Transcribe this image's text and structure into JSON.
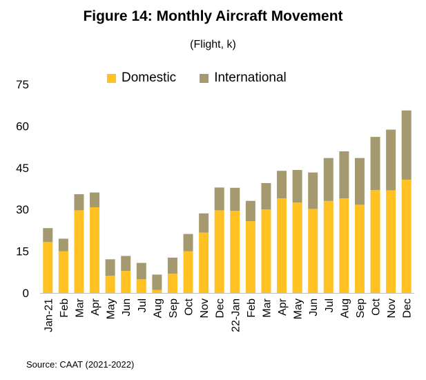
{
  "title": "Figure 14: Monthly Aircraft Movement",
  "subtitle": "(Flight, k)",
  "source": "Source: CAAT (2021-2022)",
  "colors": {
    "domestic": "#FFC222",
    "international": "#A59A6F"
  },
  "chart_data": {
    "type": "bar",
    "stacked": true,
    "title": "Figure 14: Monthly Aircraft Movement",
    "subtitle": "(Flight, k)",
    "xlabel": "",
    "ylabel": "",
    "ylim": [
      0,
      75
    ],
    "yticks": [
      "0",
      "15",
      "30",
      "45",
      "60",
      "75"
    ],
    "legend": "top",
    "grid": false,
    "categories": [
      "Jan-21",
      "Feb",
      "Mar",
      "Apr",
      "May",
      "Jun",
      "Jul",
      "Aug",
      "Sep",
      "Oct",
      "Nov",
      "Dec",
      "22-Jan",
      "Feb",
      "Mar",
      "Apr",
      "May",
      "Jun",
      "Jul",
      "Aug",
      "Sep",
      "Oct",
      "Nov",
      "Dec"
    ],
    "series": [
      {
        "name": "Domestic",
        "values": [
          18.3,
          15,
          29.7,
          30.8,
          6.2,
          7.9,
          4.9,
          1.1,
          6.9,
          15,
          21.7,
          29.7,
          29.5,
          25.8,
          30,
          34,
          32.5,
          30.2,
          33.1,
          34,
          31.7,
          37,
          36.9,
          40.7
        ]
      },
      {
        "name": "International",
        "values": [
          5,
          4.5,
          5.8,
          5.3,
          5.9,
          5.4,
          5.9,
          5.5,
          5.8,
          6.2,
          6.9,
          8.2,
          8.3,
          7.3,
          9.5,
          9.9,
          11.7,
          13.1,
          15.4,
          16.9,
          16.8,
          19.1,
          21.8,
          24.9
        ]
      }
    ]
  }
}
